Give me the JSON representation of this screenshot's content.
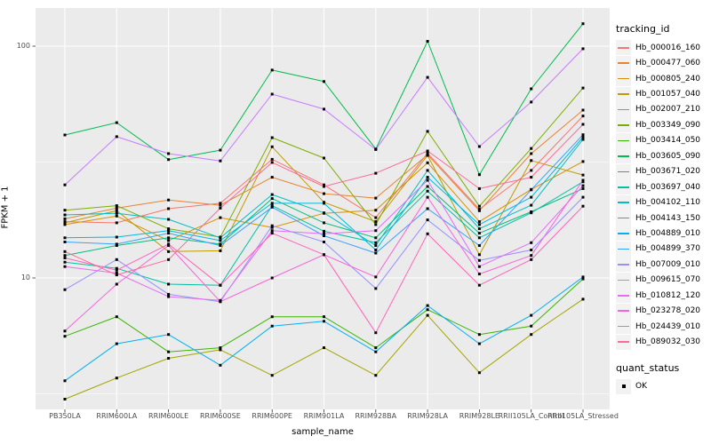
{
  "figure": {
    "y_axis": {
      "title": "FPKM + 1",
      "ticks": [
        {
          "label": "100",
          "value": 100
        },
        {
          "label": "10",
          "value": 10
        }
      ]
    },
    "x_axis": {
      "title": "sample_name"
    },
    "legend": {
      "tracking_title": "tracking_id",
      "quant_title": "quant_status",
      "quant_items": [
        {
          "label": "OK",
          "marker": "black-square"
        }
      ]
    }
  },
  "chart_data": {
    "type": "line",
    "title": "",
    "xlabel": "sample_name",
    "ylabel": "FPKM + 1",
    "x_scale": "categorical",
    "y_scale": "log10",
    "ylim": [
      2.7,
      145
    ],
    "y_breaks": [
      10,
      100
    ],
    "y_minor_breaks": [
      3.162,
      31.62
    ],
    "grid": true,
    "panel_bg": "#EBEBEB",
    "grid_color": "#FFFFFF",
    "point_marker": {
      "shape": "square",
      "color": "#000000",
      "size": 3
    },
    "legend_position": "right",
    "categories": [
      "PB350LA",
      "RRIM600LA",
      "RRIM600LE",
      "RRIM600SE",
      "RRIM600PE",
      "RRIM901LA",
      "RRIM928BA",
      "RRIM928LA",
      "RRIM928LE",
      "RRII105LA_Control",
      "RRII105LA_Stressed"
    ],
    "series": [
      {
        "name": "Hb_000016_160",
        "color": "#F8766D",
        "values": [
          17.5,
          17.3,
          19.9,
          21.0,
          32.5,
          25.2,
          18.2,
          34.5,
          19.8,
          29.1,
          50.0
        ]
      },
      {
        "name": "Hb_000477_060",
        "color": "#EA8331",
        "values": [
          18.0,
          20.0,
          21.7,
          20.6,
          27.2,
          23.1,
          22.1,
          34.0,
          19.5,
          34.4,
          53.0
        ]
      },
      {
        "name": "Hb_000805_240",
        "color": "#D89000",
        "values": [
          17.0,
          18.5,
          14.5,
          18.2,
          16.5,
          19.0,
          19.6,
          31.4,
          17.5,
          24.1,
          31.8
        ]
      },
      {
        "name": "Hb_001057_040",
        "color": "#C09B00",
        "values": [
          17.3,
          19.5,
          13.0,
          13.1,
          36.8,
          21.2,
          17.5,
          33.8,
          12.6,
          32.1,
          27.8
        ]
      },
      {
        "name": "Hb_002007_210",
        "color": "#A3A500",
        "values": [
          3.0,
          3.7,
          4.5,
          4.9,
          3.8,
          5.0,
          3.8,
          6.9,
          3.9,
          5.7,
          8.1
        ]
      },
      {
        "name": "Hb_003349_090",
        "color": "#7CAE00",
        "values": [
          19.6,
          20.5,
          16.3,
          15.0,
          40.3,
          32.9,
          17.0,
          42.9,
          20.4,
          36.2,
          66.0
        ]
      },
      {
        "name": "Hb_003414_050",
        "color": "#39B600",
        "values": [
          5.6,
          6.8,
          4.8,
          5.0,
          6.8,
          6.8,
          5.0,
          7.3,
          5.7,
          6.2,
          9.9
        ]
      },
      {
        "name": "Hb_003605_090",
        "color": "#00BB4E",
        "values": [
          41.4,
          46.8,
          32.4,
          35.6,
          78.9,
          70.4,
          36.0,
          105.0,
          27.9,
          65.5,
          125.0
        ]
      },
      {
        "name": "Hb_003671_020",
        "color": "#00BF7D",
        "values": [
          12.5,
          13.8,
          14.9,
          14.0,
          22.0,
          17.3,
          14.9,
          24.8,
          15.6,
          19.3,
          24.3
        ]
      },
      {
        "name": "Hb_003697_040",
        "color": "#00C1A3",
        "values": [
          11.7,
          11.0,
          9.4,
          9.3,
          20.5,
          15.9,
          14.2,
          23.7,
          14.9,
          19.1,
          26.0
        ]
      },
      {
        "name": "Hb_004102_110",
        "color": "#00BFC4",
        "values": [
          18.7,
          19.0,
          17.9,
          14.9,
          22.9,
          19.1,
          13.8,
          29.1,
          16.3,
          20.6,
          39.6
        ]
      },
      {
        "name": "Hb_004143_150",
        "color": "#00BAE0",
        "values": [
          14.9,
          15.0,
          16.0,
          14.5,
          21.0,
          21.0,
          13.2,
          27.2,
          17.0,
          22.3,
          40.5
        ]
      },
      {
        "name": "Hb_004889_010",
        "color": "#00B0F6",
        "values": [
          3.6,
          5.2,
          5.7,
          4.2,
          6.2,
          6.5,
          4.8,
          7.6,
          5.2,
          6.9,
          10.1
        ]
      },
      {
        "name": "Hb_004899_370",
        "color": "#35A2FF",
        "values": [
          14.3,
          14.0,
          15.6,
          13.8,
          20.2,
          15.2,
          12.8,
          19.9,
          13.8,
          24.0,
          41.5
        ]
      },
      {
        "name": "Hb_007009_010",
        "color": "#9590FF",
        "values": [
          8.9,
          12.0,
          8.5,
          7.9,
          16.8,
          14.3,
          9.0,
          17.8,
          11.9,
          13.2,
          22.3
        ]
      },
      {
        "name": "Hb_009615_070",
        "color": "#C77CFF",
        "values": [
          25.2,
          40.7,
          34.4,
          32.0,
          62.1,
          53.5,
          35.8,
          73.4,
          36.9,
          57.4,
          97.5
        ]
      },
      {
        "name": "Hb_010812_120",
        "color": "#E76BF3",
        "values": [
          11.2,
          10.5,
          8.3,
          8.0,
          16.0,
          15.5,
          16.0,
          26.4,
          11.2,
          14.2,
          25.0
        ]
      },
      {
        "name": "Hb_023278_020",
        "color": "#FA62DB",
        "values": [
          5.9,
          9.4,
          13.8,
          7.9,
          10.0,
          12.6,
          10.1,
          22.3,
          10.4,
          12.5,
          26.4
        ]
      },
      {
        "name": "Hb_024439_010",
        "color": "#FF62BC",
        "values": [
          12.2,
          10.8,
          14.0,
          9.3,
          15.6,
          12.6,
          5.8,
          15.5,
          9.3,
          12.0,
          20.4
        ]
      },
      {
        "name": "Hb_089032_030",
        "color": "#FF6A98",
        "values": [
          13.0,
          10.3,
          12.0,
          20.0,
          31.5,
          24.8,
          28.3,
          35.3,
          24.3,
          27.2,
          46.0
        ]
      }
    ]
  }
}
